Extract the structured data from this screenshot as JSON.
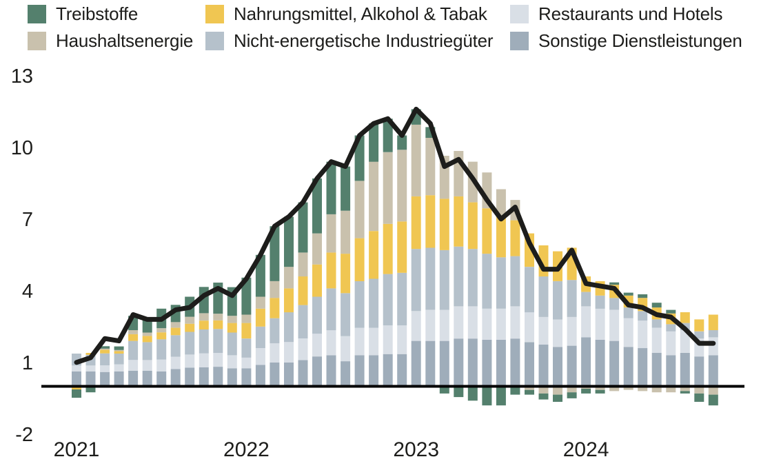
{
  "colors": {
    "fuels": "#54806d",
    "hh_energy": "#c9c1ad",
    "food": "#f0c652",
    "neig": "#b5c1cb",
    "restaurants": "#d9dfe6",
    "other_services": "#9fadba",
    "line": "#1d1d1b",
    "axis": "#000000"
  },
  "legend": {
    "items": [
      {
        "label": "Treibstoffe",
        "series": "fuels",
        "row": 1,
        "col": 1
      },
      {
        "label": "Nahrungsmittel, Alkohol & Tabak",
        "series": "food",
        "row": 1,
        "col": 2
      },
      {
        "label": "Restaurants und Hotels",
        "series": "restaurants",
        "row": 1,
        "col": 3
      },
      {
        "label": "Haushaltsenergie",
        "series": "hh_energy",
        "row": 2,
        "col": 1
      },
      {
        "label": "Nicht-energetische Industriegüter",
        "series": "neig",
        "row": 2,
        "col": 2
      },
      {
        "label": "Sonstige Dienstleistungen",
        "series": "other_services",
        "row": 2,
        "col": 3
      }
    ]
  },
  "chart_data": {
    "type": "bar",
    "subtype": "stacked-bar-with-line",
    "x_unit": "month",
    "x_start": "2021-01",
    "x_end": "2024-10",
    "year_labels": [
      "2021",
      "2022",
      "2023",
      "2024"
    ],
    "y_ticks": [
      13,
      10,
      7,
      4,
      1,
      -2
    ],
    "ylim": [
      -2,
      13
    ],
    "grid": false,
    "legend_position": "top",
    "stack_order": [
      "other_services",
      "restaurants",
      "neig",
      "food",
      "hh_energy",
      "fuels"
    ],
    "series": [
      {
        "name": "fuels",
        "values": [
          -0.35,
          -0.25,
          0.1,
          0.15,
          0.6,
          0.58,
          0.82,
          0.72,
          0.84,
          1.1,
          1.3,
          1.2,
          1.55,
          1.75,
          2.3,
          2.1,
          2.1,
          2.3,
          2.2,
          1.85,
          1.9,
          1.6,
          1.4,
          0.6,
          0.65,
          0.45,
          -0.3,
          -0.45,
          -0.6,
          -0.8,
          -0.8,
          -0.35,
          -0.2,
          -0.25,
          -0.3,
          -0.25,
          -0.2,
          -0.15,
          0.1,
          0.12,
          0.15,
          0.2,
          0.15,
          -0.1,
          -0.35,
          -0.45
        ]
      },
      {
        "name": "hh_energy",
        "values": [
          0,
          0,
          0.05,
          0.05,
          0.17,
          0.14,
          0.17,
          0.24,
          0.29,
          0.31,
          0.28,
          0.3,
          0.35,
          0.5,
          0.7,
          0.9,
          1.0,
          1.3,
          1.6,
          1.8,
          2.4,
          2.9,
          3.0,
          3.0,
          3.0,
          2.4,
          1.8,
          1.9,
          1.7,
          1.5,
          1.1,
          0.85,
          -0.15,
          -0.3,
          -0.35,
          -0.25,
          -0.1,
          -0.15,
          -0.2,
          -0.15,
          -0.2,
          -0.25,
          -0.25,
          -0.2,
          -0.3,
          -0.35
        ]
      },
      {
        "name": "food",
        "values": [
          -0.13,
          0.08,
          0.15,
          0.1,
          0.28,
          0.26,
          0.29,
          0.31,
          0.34,
          0.37,
          0.36,
          0.4,
          0.65,
          0.75,
          0.85,
          1.0,
          1.2,
          1.35,
          1.5,
          1.65,
          1.8,
          2.0,
          2.1,
          2.15,
          2.2,
          2.2,
          2.15,
          2.1,
          1.95,
          1.9,
          1.75,
          1.5,
          1.4,
          1.3,
          1.25,
          1.35,
          0.65,
          0.6,
          0.55,
          0.5,
          0.55,
          0.5,
          0.45,
          0.45,
          0.5,
          0.65
        ]
      },
      {
        "name": "neig",
        "values": [
          0.5,
          0.45,
          0.5,
          0.45,
          0.8,
          0.75,
          0.85,
          0.9,
          0.95,
          1.0,
          1.0,
          0.95,
          0.8,
          0.9,
          1.05,
          1.25,
          1.4,
          1.55,
          1.75,
          1.8,
          1.95,
          2.05,
          2.15,
          2.2,
          2.6,
          2.6,
          2.5,
          2.5,
          2.4,
          2.3,
          2.15,
          2.1,
          1.9,
          1.7,
          1.6,
          1.55,
          0.6,
          0.55,
          0.5,
          0.45,
          0.4,
          0.35,
          0.3,
          0.3,
          0.3,
          0.3
        ]
      },
      {
        "name": "restaurants",
        "values": [
          0.25,
          0.25,
          0.28,
          0.3,
          0.45,
          0.45,
          0.5,
          0.52,
          0.55,
          0.58,
          0.58,
          0.55,
          0.45,
          0.7,
          0.8,
          0.85,
          0.9,
          0.95,
          1.05,
          1.05,
          1.15,
          1.15,
          1.2,
          1.2,
          1.25,
          1.3,
          1.3,
          1.35,
          1.35,
          1.3,
          1.3,
          1.35,
          1.25,
          1.15,
          1.15,
          1.2,
          1.3,
          1.3,
          1.3,
          1.2,
          1.15,
          1.05,
          1.0,
          0.95,
          0.75,
          0.75
        ]
      },
      {
        "name": "other_services",
        "values": [
          0.62,
          0.62,
          0.6,
          0.62,
          0.65,
          0.65,
          0.62,
          0.72,
          0.78,
          0.8,
          0.82,
          0.75,
          0.75,
          0.9,
          1.0,
          1.0,
          1.1,
          1.25,
          1.3,
          1.05,
          1.3,
          1.3,
          1.35,
          1.35,
          1.9,
          1.9,
          1.9,
          2.0,
          2.0,
          1.95,
          1.95,
          2.0,
          1.85,
          1.75,
          1.65,
          1.7,
          2.05,
          1.95,
          1.9,
          1.65,
          1.6,
          1.4,
          1.3,
          1.4,
          1.25,
          1.3
        ]
      }
    ],
    "total_line": [
      1.0,
      1.2,
      2.0,
      1.9,
      3.0,
      2.8,
      2.8,
      3.2,
      3.3,
      3.8,
      4.1,
      3.8,
      4.5,
      5.5,
      6.7,
      7.1,
      7.7,
      8.7,
      9.4,
      9.2,
      10.5,
      11.0,
      11.2,
      10.5,
      11.6,
      11.0,
      9.2,
      9.5,
      8.7,
      7.8,
      7.0,
      7.5,
      6.0,
      4.9,
      4.9,
      5.7,
      4.3,
      4.2,
      4.1,
      3.4,
      3.3,
      3.0,
      2.9,
      2.4,
      1.8,
      1.8
    ]
  }
}
